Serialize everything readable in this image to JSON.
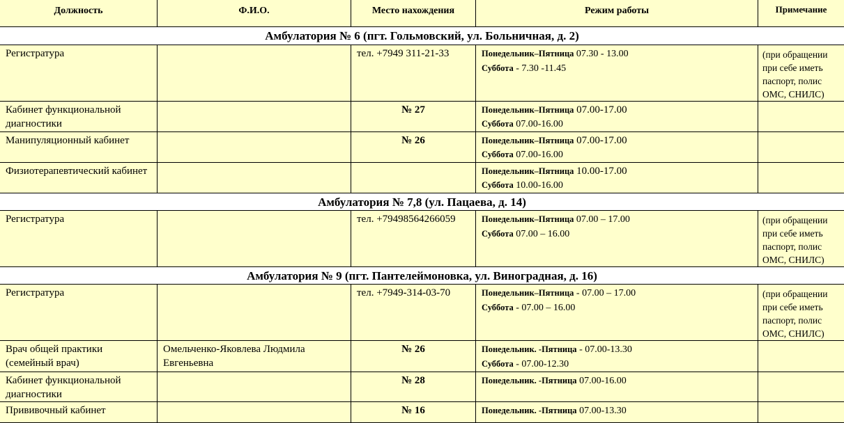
{
  "headers": [
    "Должность",
    "Ф.И.О.",
    "Место нахождения",
    "Режим работы",
    "Примечание"
  ],
  "note_text": "(при обращении при себе иметь паспорт, полис ОМС, СНИЛС)",
  "sections": [
    {
      "title": "Амбулатория № 6 (пгт. Гольмовский, ул. Больничная, д. 2)",
      "rows": [
        {
          "position": "Регистратура",
          "name": "",
          "location": "тел. +7949 311-21-33",
          "room": "",
          "schedule": [
            {
              "label": "Понедельник–Пятница",
              "time": " 07.30 - 13.00"
            },
            {
              "label": "Суббота",
              "time": " - 7.30 -11.45"
            }
          ],
          "note": "(при обращении при себе иметь паспорт, полис ОМС, СНИЛС)"
        },
        {
          "position": "Кабинет функциональной диагностики",
          "name": "",
          "location": "",
          "room": "№ 27",
          "schedule": [
            {
              "label": "Понедельник–Пятница",
              "time": " 07.00-17.00"
            },
            {
              "label": "Суббота",
              "time": " 07.00-16.00"
            }
          ],
          "note": ""
        },
        {
          "position": "Манипуляционный кабинет",
          "name": "",
          "location": "",
          "room": "№ 26",
          "schedule": [
            {
              "label": "Понедельник–Пятница",
              "time": " 07.00-17.00"
            },
            {
              "label": "Суббота",
              "time": " 07.00-16.00"
            }
          ],
          "note": ""
        },
        {
          "position": "Физиотерапевтический кабинет",
          "name": "",
          "location": "",
          "room": "",
          "schedule": [
            {
              "label": "Понедельник–Пятница",
              "time": " 10.00-17.00"
            },
            {
              "label": "Суббота",
              "time": " 10.00-16.00"
            }
          ],
          "note": ""
        }
      ]
    },
    {
      "title": "Амбулатория № 7,8 (ул. Пацаева, д. 14)",
      "rows": [
        {
          "position": "Регистратура",
          "name": "",
          "location": "тел. +79498564266059",
          "room": "",
          "schedule": [
            {
              "label": "Понедельник–Пятница",
              "time": " 07.00 – 17.00"
            },
            {
              "label": "Суббота",
              "time": " 07.00 – 16.00"
            }
          ],
          "note": "(при обращении при себе иметь паспорт, полис ОМС, СНИЛС)"
        }
      ]
    },
    {
      "title": "Амбулатория № 9 (пгт. Пантелеймоновка, ул. Виноградная, д. 16)",
      "rows": [
        {
          "position": "Регистратура",
          "name": "",
          "location": "тел. +7949-314-03-70",
          "room": "",
          "schedule": [
            {
              "label": "Понедельник–Пятница",
              "time": " - 07.00 – 17.00"
            },
            {
              "label": "Суббота",
              "time": " - 07.00 – 16.00"
            }
          ],
          "note": "(при обращении при себе иметь паспорт, полис ОМС, СНИЛС)"
        },
        {
          "position": "Врач общей практики (семейный врач)",
          "name": "Омельченко-Яковлева Людмила Евгеньевна",
          "location": "",
          "room": "№ 26",
          "schedule": [
            {
              "label": "Понедельник. -Пятница",
              "time": " - 07.00-13.30"
            },
            {
              "label": "Суббота",
              "time": " - 07.00-12.30"
            }
          ],
          "note": ""
        },
        {
          "position": "Кабинет функциональной диагностики",
          "name": "",
          "location": "",
          "room": "№ 28",
          "schedule": [
            {
              "label": "Понедельник. -Пятница",
              "time": " 07.00-16.00"
            }
          ],
          "note": ""
        },
        {
          "position": "Прививочный кабинет",
          "name": "",
          "location": "",
          "room": "№ 16",
          "schedule": [
            {
              "label": "Понедельник. -Пятница",
              "time": " 07.00-13.30"
            }
          ],
          "note": ""
        }
      ]
    }
  ],
  "colors": {
    "cell_background": "#ffffcc",
    "section_background": "#ffffff",
    "border": "#000000"
  }
}
